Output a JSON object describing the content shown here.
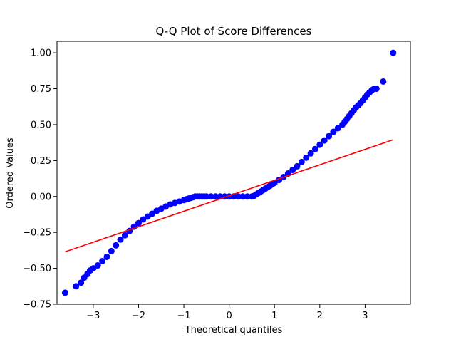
{
  "chart_data": {
    "type": "scatter",
    "title": "Q-Q Plot of Score Differences",
    "xlabel": "Theoretical quantiles",
    "ylabel": "Ordered Values",
    "xlim": [
      -3.8,
      4.0
    ],
    "ylim": [
      -0.75,
      1.08
    ],
    "x_ticks": [
      -3,
      -2,
      -1,
      0,
      1,
      2,
      3
    ],
    "x_tick_labels": [
      "−3",
      "−2",
      "−1",
      "0",
      "1",
      "2",
      "3"
    ],
    "y_ticks": [
      -0.75,
      -0.5,
      -0.25,
      0.0,
      0.25,
      0.5,
      0.75,
      1.0
    ],
    "y_tick_labels": [
      "−0.75",
      "−0.50",
      "−0.25",
      "0.00",
      "0.25",
      "0.50",
      "0.75",
      "1.00"
    ],
    "grid": false,
    "point_color": "#0000ff",
    "line_color": "#ff0000",
    "points": {
      "x": [
        -3.62,
        -3.38,
        -3.27,
        -3.2,
        -3.13,
        -3.07,
        -3.0,
        -2.9,
        -2.8,
        -2.7,
        -2.6,
        -2.5,
        -2.4,
        -2.3,
        -2.2,
        -2.1,
        -2.0,
        -1.9,
        -1.8,
        -1.7,
        -1.6,
        -1.5,
        -1.4,
        -1.3,
        -1.2,
        -1.1,
        -1.0,
        -0.95,
        -0.9,
        -0.85,
        -0.8,
        -0.75,
        -0.7,
        -0.65,
        -0.6,
        -0.55,
        -0.5,
        -0.4,
        -0.3,
        -0.2,
        -0.1,
        0.0,
        0.1,
        0.2,
        0.3,
        0.4,
        0.5,
        0.55,
        0.6,
        0.65,
        0.7,
        0.75,
        0.8,
        0.85,
        0.9,
        0.95,
        1.0,
        1.1,
        1.2,
        1.3,
        1.4,
        1.5,
        1.6,
        1.7,
        1.8,
        1.9,
        2.0,
        2.1,
        2.2,
        2.3,
        2.4,
        2.5,
        2.55,
        2.6,
        2.65,
        2.7,
        2.75,
        2.8,
        2.85,
        2.9,
        2.95,
        3.0,
        3.05,
        3.1,
        3.15,
        3.2,
        3.25,
        3.4,
        3.62
      ],
      "y": [
        -0.67,
        -0.625,
        -0.6,
        -0.565,
        -0.54,
        -0.515,
        -0.5,
        -0.48,
        -0.45,
        -0.42,
        -0.38,
        -0.34,
        -0.3,
        -0.27,
        -0.24,
        -0.21,
        -0.185,
        -0.16,
        -0.14,
        -0.12,
        -0.1,
        -0.085,
        -0.07,
        -0.055,
        -0.045,
        -0.035,
        -0.025,
        -0.02,
        -0.015,
        -0.01,
        -0.005,
        0.0,
        0.0,
        0.0,
        0.0,
        0.0,
        0.0,
        0.0,
        0.0,
        0.0,
        0.0,
        0.0,
        0.0,
        0.0,
        0.0,
        0.0,
        0.0,
        0.005,
        0.015,
        0.025,
        0.035,
        0.045,
        0.055,
        0.065,
        0.075,
        0.085,
        0.095,
        0.115,
        0.135,
        0.16,
        0.185,
        0.21,
        0.24,
        0.27,
        0.3,
        0.33,
        0.36,
        0.39,
        0.42,
        0.45,
        0.475,
        0.5,
        0.52,
        0.54,
        0.56,
        0.58,
        0.6,
        0.62,
        0.635,
        0.65,
        0.67,
        0.69,
        0.71,
        0.725,
        0.74,
        0.75,
        0.75,
        0.8,
        1.0
      ]
    },
    "fit_line": {
      "x": [
        -3.62,
        3.62
      ],
      "y": [
        -0.385,
        0.395
      ]
    }
  }
}
